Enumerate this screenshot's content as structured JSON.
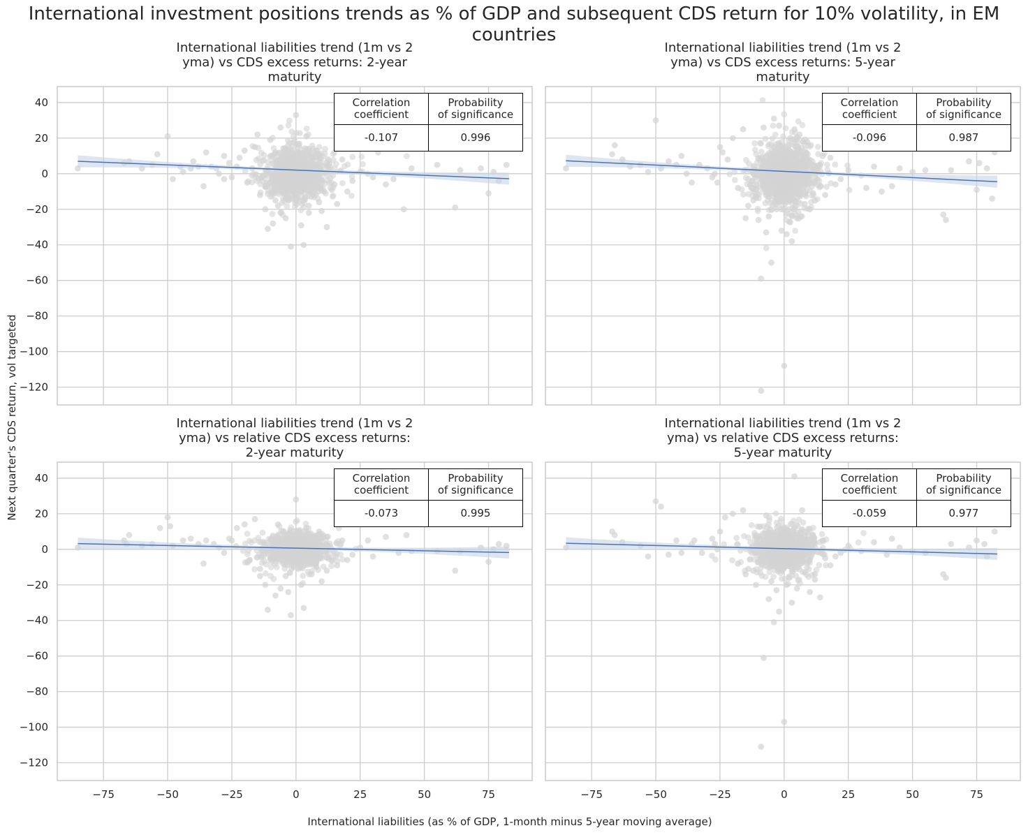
{
  "suptitle": "International investment positions trends as % of GDP and subsequent CDS return for 10% volatility, in EM countries",
  "xlabel": "International liabilities (as % of GDP, 1-month minus 5-year moving average)",
  "ylabel": "Next quarter's CDS return, vol targeted",
  "table_headers": {
    "corr": "Correlation\ncoefficient",
    "prob": "Probability\nof significance"
  },
  "colors": {
    "points": "#d3d3d3",
    "line": "#4c72b0",
    "band": "#c7d3e6",
    "grid": "#cccccc",
    "spine": "#cccccc"
  },
  "chart_data": [
    {
      "type": "scatter",
      "title": "International liabilities trend (1m vs 2 yma) vs CDS excess returns: 2-year maturity",
      "title_lines": [
        "International liabilities trend (1m vs 2",
        "yma) vs CDS excess returns: 2-year",
        "maturity"
      ],
      "xlim": [
        -93,
        92
      ],
      "ylim": [
        -130,
        49
      ],
      "xticks": [
        -75,
        -50,
        -25,
        0,
        25,
        50,
        75
      ],
      "yticks": [
        40,
        20,
        0,
        -20,
        -40,
        -60,
        -80,
        -100,
        -120
      ],
      "regression": {
        "x": [
          -85,
          83
        ],
        "y": [
          7,
          -2.8
        ]
      },
      "stats": {
        "corr": "-0.107",
        "prob": "0.996"
      },
      "points": [
        [
          -85,
          3
        ],
        [
          -67,
          6
        ],
        [
          -65,
          7
        ],
        [
          -56,
          5
        ],
        [
          -54,
          11
        ],
        [
          -50,
          21
        ],
        [
          -48,
          -3
        ],
        [
          -45,
          4
        ],
        [
          -41,
          3
        ],
        [
          -40,
          7
        ],
        [
          -36,
          -7
        ],
        [
          -35,
          12
        ],
        [
          -33,
          4
        ],
        [
          -31,
          3
        ],
        [
          -28,
          10
        ],
        [
          -28,
          -3
        ],
        [
          -25,
          -2
        ],
        [
          -23,
          4
        ],
        [
          -22,
          9
        ],
        [
          -20,
          13
        ],
        [
          -19,
          -5
        ],
        [
          -17,
          3
        ],
        [
          -16,
          15
        ],
        [
          -14,
          -12
        ],
        [
          -12,
          -20
        ],
        [
          -11,
          -31
        ],
        [
          -10,
          -5
        ],
        [
          -9,
          -28
        ],
        [
          -8,
          12
        ],
        [
          -7,
          -18
        ],
        [
          -6,
          26
        ],
        [
          -5,
          -9
        ],
        [
          -4,
          -25
        ],
        [
          -3,
          -15
        ],
        [
          -2,
          -41
        ],
        [
          -1,
          -10
        ],
        [
          0,
          33
        ],
        [
          1,
          -8
        ],
        [
          2,
          -29
        ],
        [
          3,
          -40
        ],
        [
          4,
          21
        ],
        [
          5,
          -18
        ],
        [
          6,
          -13
        ],
        [
          8,
          13
        ],
        [
          10,
          -21
        ],
        [
          12,
          -30
        ],
        [
          14,
          -9
        ],
        [
          16,
          -17
        ],
        [
          18,
          8
        ],
        [
          20,
          -10
        ],
        [
          22,
          -4
        ],
        [
          25,
          1
        ],
        [
          28,
          0
        ],
        [
          30,
          -2
        ],
        [
          32,
          12
        ],
        [
          35,
          -6
        ],
        [
          38,
          -3
        ],
        [
          42,
          -20
        ],
        [
          45,
          3
        ],
        [
          55,
          5
        ],
        [
          62,
          -19
        ],
        [
          64,
          2
        ],
        [
          72,
          3
        ],
        [
          75,
          -11
        ],
        [
          77,
          1
        ],
        [
          79,
          -4
        ],
        [
          82,
          5
        ],
        [
          -30,
          0
        ],
        [
          -26,
          6
        ],
        [
          -38,
          4
        ],
        [
          -44,
          1
        ],
        [
          -60,
          3
        ],
        [
          -15,
          22
        ],
        [
          -10,
          19
        ],
        [
          -8,
          -15
        ],
        [
          -6,
          -22
        ],
        [
          -4,
          -14
        ],
        [
          5,
          -22
        ],
        [
          7,
          9
        ],
        [
          9,
          -16
        ],
        [
          11,
          -10
        ],
        [
          13,
          6
        ],
        [
          15,
          -6
        ],
        [
          19,
          14
        ]
      ],
      "cluster": {
        "count": 1150,
        "sx": 5.2,
        "sy": 6.5,
        "seed": 11
      }
    },
    {
      "type": "scatter",
      "title": "International liabilities trend (1m vs 2 yma) vs CDS excess returns: 5-year maturity",
      "title_lines": [
        "International liabilities trend (1m vs 2",
        "yma) vs CDS excess returns: 5-year",
        "maturity"
      ],
      "xlim": [
        -93,
        92
      ],
      "ylim": [
        -130,
        49
      ],
      "xticks": [
        -75,
        -50,
        -25,
        0,
        25,
        50,
        75
      ],
      "yticks": [
        40,
        20,
        0,
        -20,
        -40,
        -60,
        -80,
        -100,
        -120
      ],
      "regression": {
        "x": [
          -85,
          83
        ],
        "y": [
          7.3,
          -4.5
        ]
      },
      "stats": {
        "corr": "-0.096",
        "prob": "0.987"
      },
      "points": [
        [
          -85,
          3
        ],
        [
          -67,
          11
        ],
        [
          -66,
          16
        ],
        [
          -63,
          8
        ],
        [
          -56,
          5
        ],
        [
          -53,
          1
        ],
        [
          -50,
          30
        ],
        [
          -48,
          3
        ],
        [
          -45,
          7
        ],
        [
          -40,
          10
        ],
        [
          -38,
          0
        ],
        [
          -36,
          -5
        ],
        [
          -33,
          5
        ],
        [
          -30,
          3
        ],
        [
          -28,
          -2
        ],
        [
          -26,
          -5
        ],
        [
          -25,
          15
        ],
        [
          -24,
          12
        ],
        [
          -22,
          8
        ],
        [
          -20,
          20
        ],
        [
          -18,
          -8
        ],
        [
          -16,
          25
        ],
        [
          -14,
          -18
        ],
        [
          -12,
          -15
        ],
        [
          -10,
          -26
        ],
        [
          -9,
          -59
        ],
        [
          -8,
          26
        ],
        [
          -7,
          -33
        ],
        [
          -6,
          -24
        ],
        [
          -5,
          -50
        ],
        [
          -4,
          31
        ],
        [
          -3,
          -20
        ],
        [
          -2,
          27
        ],
        [
          -1,
          -32
        ],
        [
          0,
          -108
        ],
        [
          1,
          -34
        ],
        [
          2,
          -27
        ],
        [
          3,
          -38
        ],
        [
          4,
          25
        ],
        [
          5,
          -25
        ],
        [
          6,
          22
        ],
        [
          8,
          -17
        ],
        [
          10,
          -20
        ],
        [
          12,
          -15
        ],
        [
          14,
          5
        ],
        [
          16,
          -12
        ],
        [
          18,
          9
        ],
        [
          20,
          -6
        ],
        [
          22,
          -3
        ],
        [
          25,
          2
        ],
        [
          30,
          -1
        ],
        [
          32,
          -8
        ],
        [
          35,
          4
        ],
        [
          38,
          -10
        ],
        [
          42,
          -7
        ],
        [
          45,
          3
        ],
        [
          50,
          1
        ],
        [
          55,
          2
        ],
        [
          62,
          -23
        ],
        [
          63,
          -26
        ],
        [
          65,
          2
        ],
        [
          72,
          7
        ],
        [
          75,
          -9
        ],
        [
          76,
          6
        ],
        [
          79,
          3
        ],
        [
          81,
          -14
        ],
        [
          82,
          12
        ],
        [
          -9,
          -122
        ],
        [
          -27,
          0
        ],
        [
          -42,
          5
        ],
        [
          -15,
          -25
        ],
        [
          -11,
          -13
        ],
        [
          9,
          18
        ],
        [
          13,
          -3
        ],
        [
          15,
          10
        ],
        [
          -60,
          4
        ]
      ],
      "cluster": {
        "count": 1150,
        "sx": 5.2,
        "sy": 8.0,
        "seed": 23
      }
    },
    {
      "type": "scatter",
      "title": "International liabilities trend (1m vs 2 yma) vs relative CDS excess returns: 2-year maturity",
      "title_lines": [
        "International liabilities trend (1m vs 2",
        "yma) vs relative CDS excess returns:",
        "2-year maturity"
      ],
      "xlim": [
        -93,
        92
      ],
      "ylim": [
        -130,
        49
      ],
      "xticks": [
        -75,
        -50,
        -25,
        0,
        25,
        50,
        75
      ],
      "yticks": [
        40,
        20,
        0,
        -20,
        -40,
        -60,
        -80,
        -100,
        -120
      ],
      "regression": {
        "x": [
          -85,
          83
        ],
        "y": [
          3.2,
          -1.8
        ]
      },
      "stats": {
        "corr": "-0.073",
        "prob": "0.995"
      },
      "points": [
        [
          -85,
          1
        ],
        [
          -67,
          5
        ],
        [
          -66,
          3
        ],
        [
          -65,
          8
        ],
        [
          -56,
          3
        ],
        [
          -53,
          12
        ],
        [
          -50,
          18
        ],
        [
          -49,
          13
        ],
        [
          -48,
          2
        ],
        [
          -44,
          5
        ],
        [
          -41,
          6
        ],
        [
          -38,
          3
        ],
        [
          -36,
          -8
        ],
        [
          -35,
          5
        ],
        [
          -32,
          3
        ],
        [
          -28,
          -2
        ],
        [
          -25,
          5
        ],
        [
          -23,
          12
        ],
        [
          -20,
          14
        ],
        [
          -18,
          -6
        ],
        [
          -16,
          17
        ],
        [
          -14,
          -15
        ],
        [
          -12,
          -20
        ],
        [
          -11,
          -34
        ],
        [
          -10,
          -5
        ],
        [
          -8,
          -26
        ],
        [
          -7,
          14
        ],
        [
          -6,
          -22
        ],
        [
          -5,
          10
        ],
        [
          -4,
          -15
        ],
        [
          -3,
          -24
        ],
        [
          -2,
          -37
        ],
        [
          -1,
          -10
        ],
        [
          0,
          28
        ],
        [
          1,
          -8
        ],
        [
          2,
          -20
        ],
        [
          3,
          -33
        ],
        [
          4,
          12
        ],
        [
          6,
          -14
        ],
        [
          8,
          -10
        ],
        [
          10,
          -18
        ],
        [
          12,
          -12
        ],
        [
          14,
          -6
        ],
        [
          16,
          -9
        ],
        [
          18,
          5
        ],
        [
          20,
          -6
        ],
        [
          22,
          -3
        ],
        [
          25,
          1
        ],
        [
          28,
          5
        ],
        [
          30,
          -4
        ],
        [
          35,
          7
        ],
        [
          40,
          -2
        ],
        [
          43,
          8
        ],
        [
          45,
          -1
        ],
        [
          55,
          -1
        ],
        [
          62,
          -12
        ],
        [
          64,
          -1
        ],
        [
          72,
          1
        ],
        [
          75,
          -7
        ],
        [
          77,
          0
        ],
        [
          79,
          3
        ],
        [
          82,
          2
        ],
        [
          -30,
          1
        ],
        [
          -26,
          6
        ],
        [
          -60,
          2
        ],
        [
          -14,
          -11
        ],
        [
          9,
          10
        ],
        [
          12,
          7
        ]
      ],
      "cluster": {
        "count": 1150,
        "sx": 5.2,
        "sy": 4.2,
        "seed": 37
      }
    },
    {
      "type": "scatter",
      "title": "International liabilities trend (1m vs 2 yma) vs relative CDS excess returns: 5-year maturity",
      "title_lines": [
        "International liabilities trend (1m vs 2",
        "yma) vs relative CDS excess returns:",
        "5-year maturity"
      ],
      "xlim": [
        -93,
        92
      ],
      "ylim": [
        -130,
        49
      ],
      "xticks": [
        -75,
        -50,
        -25,
        0,
        25,
        50,
        75
      ],
      "yticks": [
        40,
        20,
        0,
        -20,
        -40,
        -60,
        -80,
        -100,
        -120
      ],
      "regression": {
        "x": [
          -85,
          83
        ],
        "y": [
          3.4,
          -2.6
        ]
      },
      "stats": {
        "corr": "-0.059",
        "prob": "0.977"
      },
      "points": [
        [
          -85,
          1
        ],
        [
          -67,
          10
        ],
        [
          -66,
          8
        ],
        [
          -63,
          4
        ],
        [
          -56,
          2
        ],
        [
          -53,
          -4
        ],
        [
          -50,
          27
        ],
        [
          -48,
          24
        ],
        [
          -45,
          -3
        ],
        [
          -42,
          5
        ],
        [
          -40,
          -2
        ],
        [
          -36,
          3
        ],
        [
          -35,
          5
        ],
        [
          -32,
          -2
        ],
        [
          -28,
          6
        ],
        [
          -26,
          0
        ],
        [
          -25,
          10
        ],
        [
          -23,
          18
        ],
        [
          -20,
          20
        ],
        [
          -18,
          -8
        ],
        [
          -16,
          22
        ],
        [
          -14,
          -11
        ],
        [
          -12,
          -12
        ],
        [
          -11,
          -20
        ],
        [
          -10,
          -7
        ],
        [
          -8,
          -61
        ],
        [
          -7,
          19
        ],
        [
          -6,
          -28
        ],
        [
          -5,
          -18
        ],
        [
          -4,
          -41
        ],
        [
          -3,
          -23
        ],
        [
          -2,
          -35
        ],
        [
          -1,
          -12
        ],
        [
          0,
          -97
        ],
        [
          1,
          -20
        ],
        [
          2,
          -16
        ],
        [
          3,
          -30
        ],
        [
          4,
          41
        ],
        [
          5,
          -22
        ],
        [
          7,
          22
        ],
        [
          8,
          -13
        ],
        [
          10,
          -24
        ],
        [
          12,
          -14
        ],
        [
          14,
          -27
        ],
        [
          16,
          -5
        ],
        [
          18,
          -9
        ],
        [
          20,
          -4
        ],
        [
          22,
          -2
        ],
        [
          25,
          2
        ],
        [
          30,
          -1
        ],
        [
          35,
          4
        ],
        [
          40,
          -3
        ],
        [
          42,
          6
        ],
        [
          45,
          1
        ],
        [
          50,
          -1
        ],
        [
          55,
          -2
        ],
        [
          62,
          -14
        ],
        [
          63,
          -16
        ],
        [
          65,
          3
        ],
        [
          72,
          1
        ],
        [
          75,
          5
        ],
        [
          78,
          3
        ],
        [
          79,
          -4
        ],
        [
          82,
          10
        ],
        [
          -9,
          -111
        ],
        [
          -27,
          3
        ],
        [
          -15,
          -14
        ],
        [
          12,
          -17
        ],
        [
          15,
          5
        ]
      ],
      "cluster": {
        "count": 1150,
        "sx": 5.2,
        "sy": 5.2,
        "seed": 53
      }
    }
  ]
}
